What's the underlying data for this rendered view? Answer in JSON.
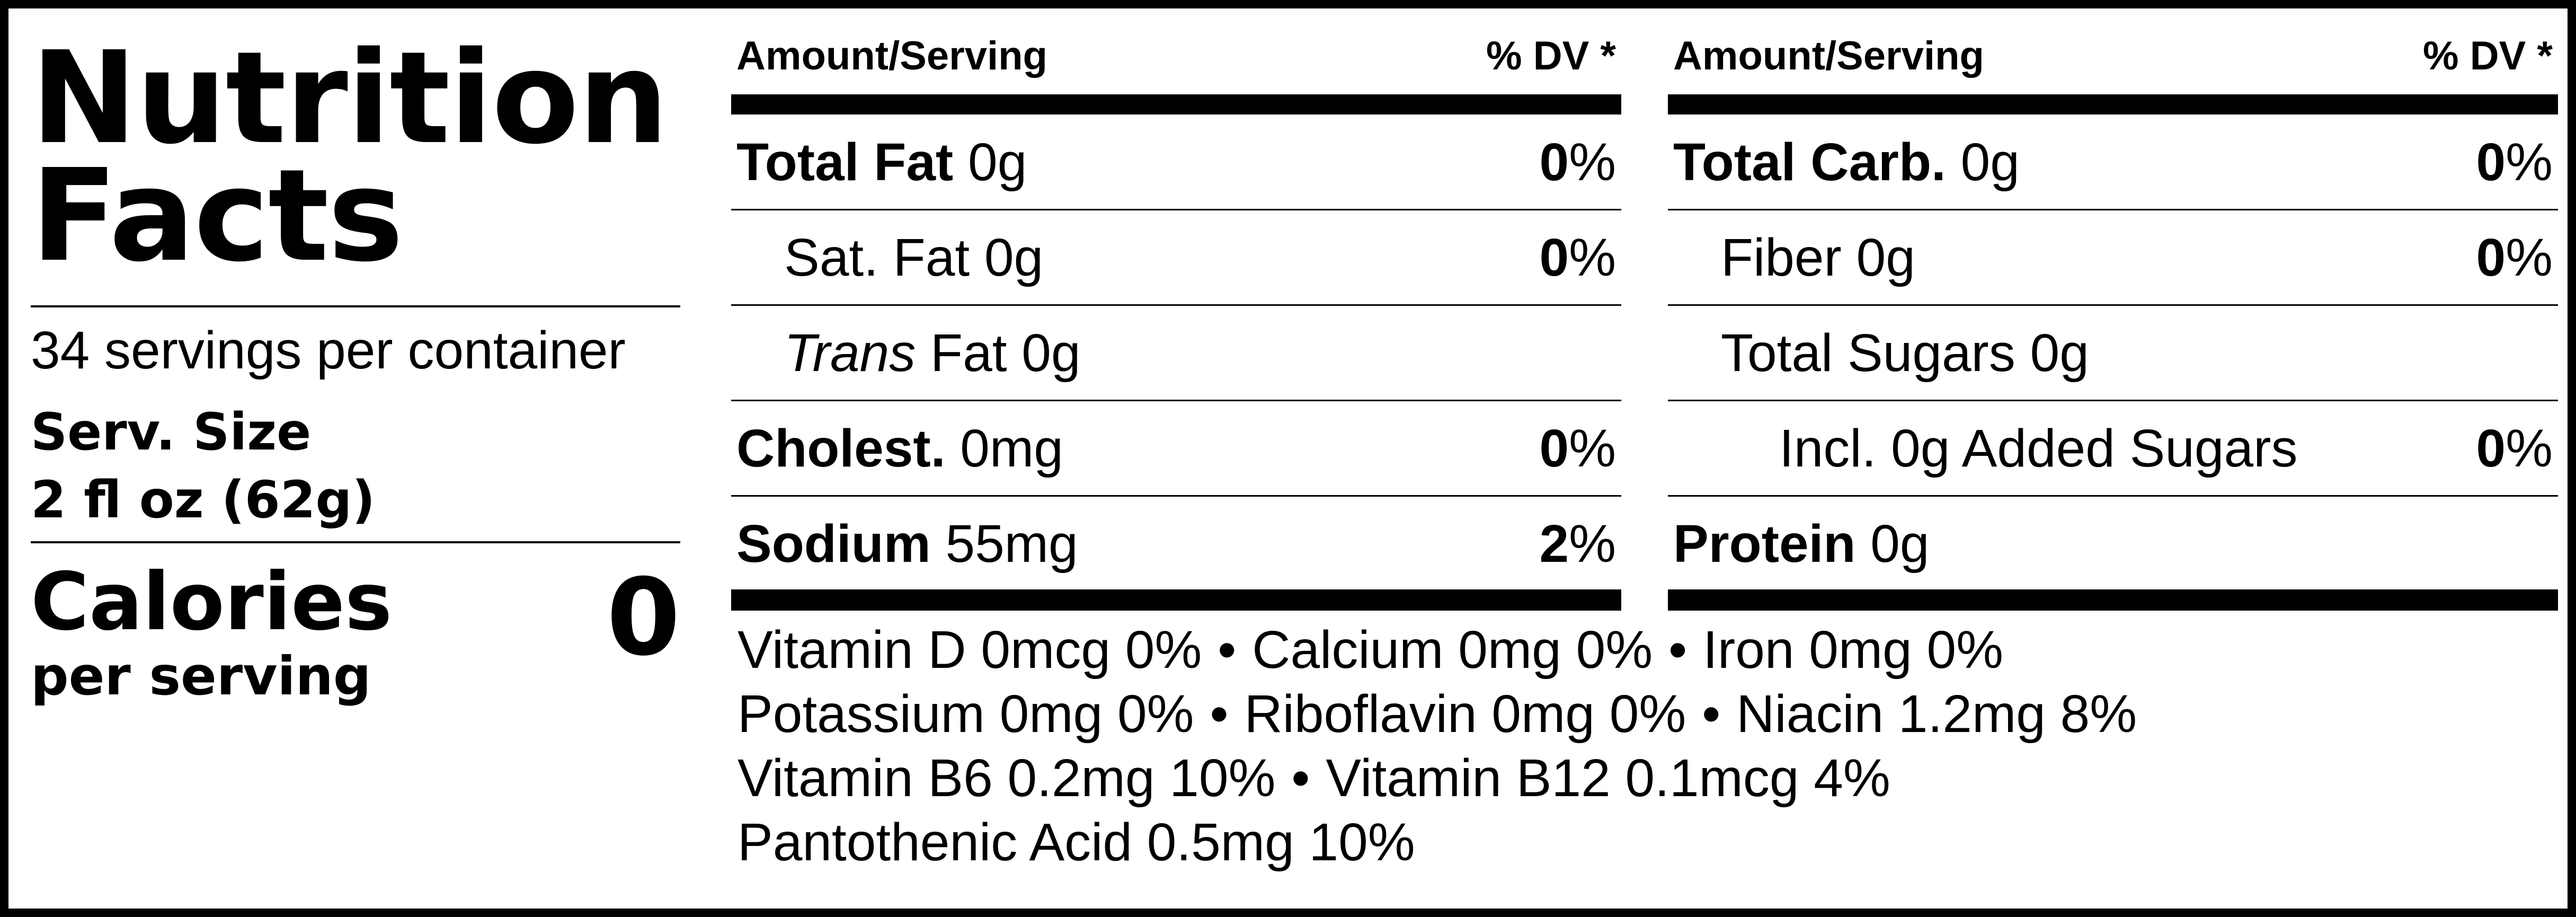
{
  "title": {
    "line1": "Nutrition",
    "line2": "Facts"
  },
  "servings": {
    "per_container": "34 servings per container",
    "serving_size_label": "Serv. Size",
    "serving_size_value": "2 fl oz (62g)"
  },
  "calories": {
    "label": "Calories",
    "sublabel": "per serving",
    "value": "0"
  },
  "headers": {
    "amount": "Amount/Serving",
    "dv": "% DV *"
  },
  "left_table": {
    "total_fat": {
      "name": "Total Fat",
      "amount": "0g",
      "dv_num": "0",
      "dv_unit": "%"
    },
    "sat_fat": {
      "name": "Sat. Fat 0g",
      "dv_num": "0",
      "dv_unit": "%"
    },
    "trans_fat": {
      "name_italic": "Trans",
      "name_rest": "Fat 0g"
    },
    "cholesterol": {
      "name": "Cholest.",
      "amount": "0mg",
      "dv_num": "0",
      "dv_unit": "%"
    },
    "sodium": {
      "name": "Sodium",
      "amount": "55mg",
      "dv_num": "2",
      "dv_unit": "%"
    }
  },
  "right_table": {
    "total_carb": {
      "name": "Total Carb.",
      "amount": "0g",
      "dv_num": "0",
      "dv_unit": "%"
    },
    "fiber": {
      "name": "Fiber 0g",
      "dv_num": "0",
      "dv_unit": "%"
    },
    "total_sugars": {
      "name": "Total Sugars 0g"
    },
    "added_sugars": {
      "name": "Incl. 0g Added Sugars",
      "dv_num": "0",
      "dv_unit": "%"
    },
    "protein": {
      "name": "Protein",
      "amount": "0g"
    }
  },
  "vitamins": {
    "separator": "•",
    "line1": [
      "Vitamin D 0mcg 0%",
      "Calcium 0mg 0%",
      "Iron 0mg 0%"
    ],
    "line2": [
      "Potassium 0mg 0%",
      "Riboflavin 0mg 0%",
      "Niacin 1.2mg 8%"
    ],
    "line3": [
      "Vitamin B6 0.2mg 10%",
      "Vitamin B12 0.1mcg 4%"
    ],
    "line4": [
      "Pantothenic Acid 0.5mg 10%"
    ]
  }
}
